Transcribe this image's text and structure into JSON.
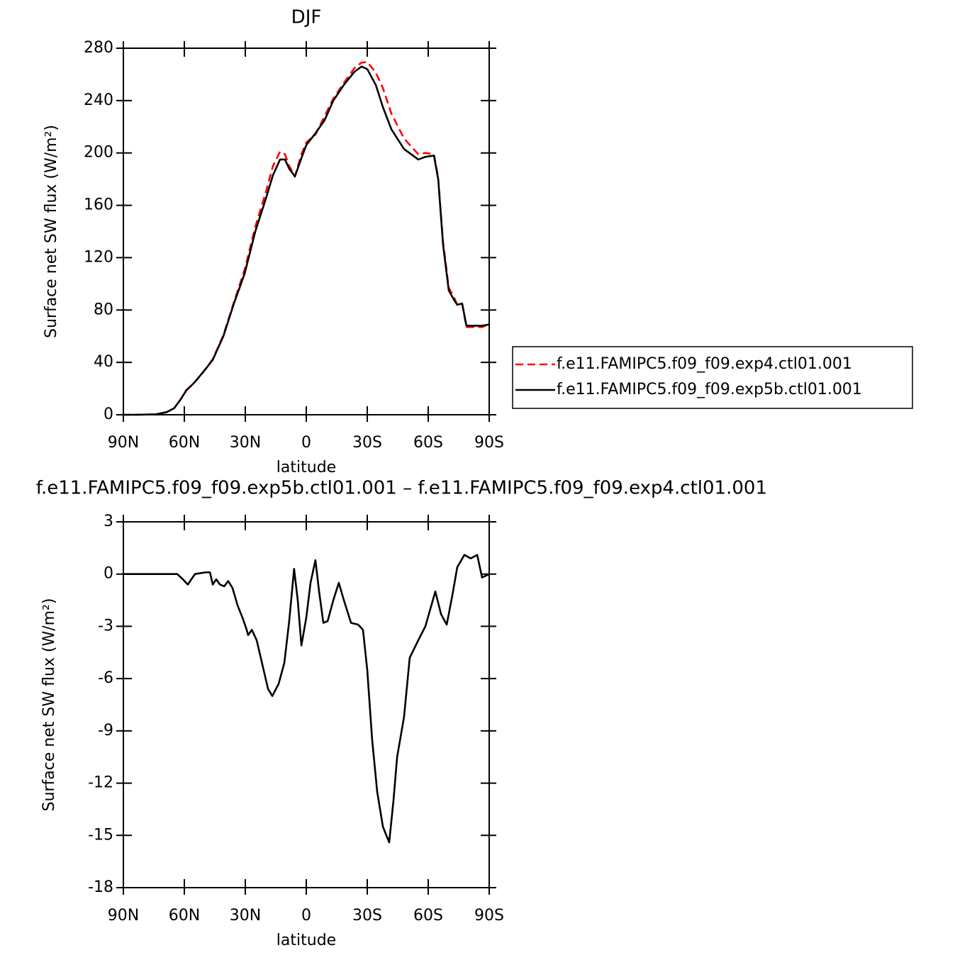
{
  "chart_data": [
    {
      "type": "line",
      "title": "DJF",
      "x_label": "latitude",
      "y_label": "Surface net SW flux (W/m²)",
      "x": [
        90,
        84.4,
        74,
        68.7,
        65,
        61.7,
        59.3,
        54.8,
        49.5,
        46,
        40.8,
        35.6,
        30.3,
        25.1,
        19.9,
        16.4,
        12.9,
        10.5,
        8.4,
        5.6,
        2.4,
        0,
        -4.5,
        -9,
        -13.3,
        -18.5,
        -23.7,
        -27.2,
        -30,
        -34.2,
        -37.7,
        -41.9,
        -48.1,
        -55.1,
        -58.6,
        -62.8,
        -64.9,
        -67.3,
        -70.1,
        -72.6,
        -74.3,
        -76.7,
        -78.8,
        -83,
        -86.5,
        -90
      ],
      "series": [
        {
          "name": "f.e11.FAMIPC5.f09_f09.exp4.ctl01.001",
          "color": "#ff0000",
          "dash": "dashed",
          "values": [
            0,
            0,
            0.3,
            2,
            5,
            12,
            18.5,
            25,
            35,
            42.5,
            60.7,
            86,
            111,
            143.5,
            170,
            190,
            201,
            199,
            190,
            182,
            199,
            208,
            214,
            228,
            241.5,
            253.5,
            264.8,
            269,
            269.5,
            261.5,
            249.5,
            230,
            211,
            199,
            200,
            199,
            181,
            132,
            97,
            90,
            84,
            84.5,
            67,
            67,
            67,
            69
          ]
        },
        {
          "name": "f.e11.FAMIPC5.f09_f09.exp5b.ctl01.001",
          "color": "#000000",
          "dash": "solid",
          "values": [
            0,
            0,
            0.3,
            2,
            5,
            12,
            18,
            25,
            35,
            42,
            60,
            85,
            108,
            140,
            165,
            183,
            195,
            195,
            188,
            182,
            196,
            206,
            215,
            225,
            240,
            252,
            262,
            266,
            264,
            252,
            235,
            218,
            203,
            195,
            197,
            198,
            180,
            130,
            95,
            88,
            84,
            85,
            68,
            68,
            68,
            69
          ]
        }
      ],
      "xlim": [
        90,
        -90
      ],
      "xticks": [
        {
          "value": 90,
          "label": "90N"
        },
        {
          "value": 60,
          "label": "60N"
        },
        {
          "value": 30,
          "label": "30N"
        },
        0,
        {
          "value": -30,
          "label": "30S"
        },
        {
          "value": -60,
          "label": "60S"
        },
        {
          "value": -90,
          "label": "90S"
        }
      ],
      "ylim": [
        0,
        280
      ],
      "yticks": [
        0,
        40,
        80,
        120,
        160,
        200,
        240,
        280
      ],
      "legend": "right"
    },
    {
      "type": "line",
      "title": "f.e11.FAMIPC5.f09_f09.exp5b.ctl01.001 – f.e11.FAMIPC5.f09_f09.exp4.ctl01.001",
      "x_label": "latitude",
      "y_label": "Surface net SW flux (W/m²)",
      "x": [
        90,
        63.5,
        60.7,
        58.3,
        54.8,
        49.5,
        47.4,
        46,
        44.3,
        42.5,
        40.4,
        38.4,
        36.3,
        33.8,
        31.4,
        29.6,
        28.6,
        26.8,
        24.4,
        21.6,
        18.8,
        16.7,
        13.6,
        10.8,
        8.4,
        6,
        4.2,
        2.4,
        0,
        -2.1,
        -4.5,
        -6.3,
        -8.4,
        -10.5,
        -13.3,
        -16,
        -18.5,
        -22,
        -25.5,
        -27.9,
        -30,
        -32.4,
        -34.9,
        -37.7,
        -39.4,
        -40.8,
        -42.9,
        -44.7,
        -48.1,
        -50.9,
        -55.1,
        -58.6,
        -63.5,
        -66.3,
        -69.1,
        -71.9,
        -74.3,
        -77.8,
        -80.9,
        -84.1,
        -86.5,
        -90
      ],
      "series": [
        {
          "color": "#000000",
          "dash": "solid",
          "values": [
            0,
            0,
            -0.3,
            -0.6,
            0,
            0.1,
            0.1,
            -0.6,
            -0.3,
            -0.6,
            -0.7,
            -0.4,
            -0.8,
            -1.8,
            -2.5,
            -3.1,
            -3.5,
            -3.2,
            -3.8,
            -5.2,
            -6.6,
            -7.0,
            -6.3,
            -5.1,
            -2.7,
            0.3,
            -1.5,
            -4.1,
            -2.5,
            -0.5,
            0.8,
            -1.0,
            -2.8,
            -2.7,
            -1.5,
            -0.5,
            -1.5,
            -2.8,
            -2.9,
            -3.2,
            -5.5,
            -9.5,
            -12.5,
            -14.5,
            -15,
            -15.4,
            -13,
            -10.5,
            -8.2,
            -4.8,
            -3.8,
            -3,
            -1.0,
            -2.3,
            -2.9,
            -1.2,
            0.4,
            1.1,
            0.9,
            1.1,
            -0.2,
            0
          ]
        }
      ],
      "xlim": [
        90,
        -90
      ],
      "xticks": [
        {
          "value": 90,
          "label": "90N"
        },
        {
          "value": 60,
          "label": "60N"
        },
        {
          "value": 30,
          "label": "30N"
        },
        0,
        {
          "value": -30,
          "label": "30S"
        },
        {
          "value": -60,
          "label": "60S"
        },
        {
          "value": -90,
          "label": "90S"
        }
      ],
      "ylim": [
        -18,
        3
      ],
      "yticks": [
        -18,
        -15,
        -12,
        -9,
        -6,
        -3,
        0,
        3
      ]
    }
  ]
}
